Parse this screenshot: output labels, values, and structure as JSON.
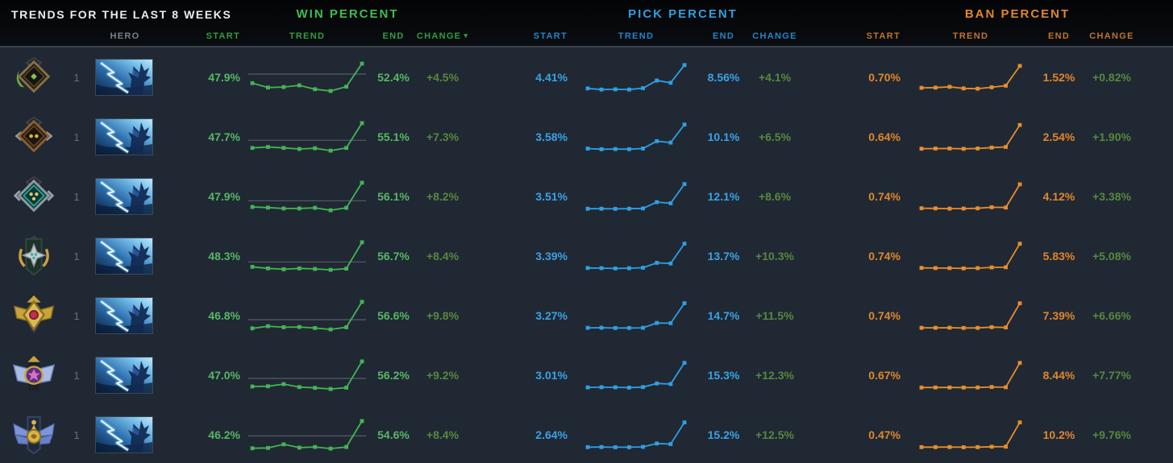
{
  "title": "TRENDS FOR THE LAST 8 WEEKS",
  "columns": {
    "hero": "HERO",
    "start": "START",
    "trend": "TREND",
    "end": "END",
    "change": "CHANGE"
  },
  "groups": {
    "win": {
      "label": "WIN PERCENT"
    },
    "pick": {
      "label": "PICK PERCENT"
    },
    "ban": {
      "label": "BAN PERCENT"
    }
  },
  "sort_indicator": {
    "column": "win-change",
    "glyph": "▾"
  },
  "hero_icon": "razor-portrait",
  "colors": {
    "win_value": "#57b763",
    "win_header": "#2f9e41",
    "win_title": "#3dbf4e",
    "pick_value": "#3aa2e4",
    "pick_header": "#2285c9",
    "pick_title": "#2f9fe2",
    "ban_value": "#e0862b",
    "ban_header": "#c1742a",
    "ban_title": "#e0862b",
    "change_positive": "#57883f",
    "win_spark": "#44b454",
    "pick_spark": "#2f9fe2",
    "ban_spark": "#e88d2b",
    "spark_ref": "#565d66",
    "body_bg": "#202834",
    "header_bg": "#07090c"
  },
  "rows": [
    {
      "rank": "herald",
      "count": "1",
      "win": {
        "start": "47.9%",
        "end": "52.4%",
        "change": "+4.5%",
        "ref": 50,
        "spark": [
          47.9,
          46.9,
          47.0,
          47.4,
          46.5,
          46.1,
          47.1,
          52.4
        ]
      },
      "pick": {
        "start": "4.41%",
        "end": "8.56%",
        "change": "+4.1%",
        "spark": [
          4.41,
          4.2,
          4.25,
          4.2,
          4.45,
          5.8,
          5.4,
          8.56
        ]
      },
      "ban": {
        "start": "0.70%",
        "end": "1.52%",
        "change": "+0.82%",
        "spark": [
          0.7,
          0.71,
          0.74,
          0.68,
          0.67,
          0.72,
          0.78,
          1.52
        ]
      }
    },
    {
      "rank": "guardian",
      "count": "1",
      "win": {
        "start": "47.7%",
        "end": "55.1%",
        "change": "+7.3%",
        "ref": 50,
        "spark": [
          47.7,
          48.0,
          47.7,
          47.4,
          47.6,
          46.9,
          47.7,
          55.1
        ]
      },
      "pick": {
        "start": "3.58%",
        "end": "10.1%",
        "change": "+6.5%",
        "spark": [
          3.58,
          3.4,
          3.45,
          3.4,
          3.6,
          5.6,
          5.2,
          10.1
        ]
      },
      "ban": {
        "start": "0.64%",
        "end": "2.54%",
        "change": "+1.90%",
        "spark": [
          0.64,
          0.65,
          0.66,
          0.63,
          0.66,
          0.73,
          0.78,
          2.54
        ]
      }
    },
    {
      "rank": "crusader",
      "count": "1",
      "win": {
        "start": "47.9%",
        "end": "56.1%",
        "change": "+8.2%",
        "ref": 50,
        "spark": [
          47.9,
          47.7,
          47.4,
          47.4,
          47.6,
          46.8,
          47.6,
          56.1
        ]
      },
      "pick": {
        "start": "3.51%",
        "end": "12.1%",
        "change": "+8.6%",
        "spark": [
          3.51,
          3.5,
          3.45,
          3.5,
          3.6,
          5.8,
          5.4,
          12.1
        ]
      },
      "ban": {
        "start": "0.74%",
        "end": "4.12%",
        "change": "+3.38%",
        "spark": [
          0.74,
          0.72,
          0.68,
          0.7,
          0.73,
          0.88,
          0.84,
          4.12
        ]
      }
    },
    {
      "rank": "archon",
      "count": "1",
      "win": {
        "start": "48.3%",
        "end": "56.7%",
        "change": "+8.4%",
        "ref": 50,
        "spark": [
          48.3,
          47.8,
          47.5,
          47.8,
          47.6,
          47.3,
          47.7,
          56.7
        ]
      },
      "pick": {
        "start": "3.39%",
        "end": "13.7%",
        "change": "+10.3%",
        "spark": [
          3.39,
          3.35,
          3.2,
          3.3,
          3.5,
          5.6,
          5.3,
          13.7
        ]
      },
      "ban": {
        "start": "0.74%",
        "end": "5.83%",
        "change": "+5.08%",
        "spark": [
          0.74,
          0.72,
          0.7,
          0.65,
          0.7,
          0.84,
          0.88,
          5.83
        ]
      }
    },
    {
      "rank": "legend",
      "count": "1",
      "win": {
        "start": "46.8%",
        "end": "56.6%",
        "change": "+9.8%",
        "ref": 50,
        "spark": [
          46.8,
          47.6,
          47.2,
          47.3,
          46.9,
          46.4,
          47.2,
          56.6
        ]
      },
      "pick": {
        "start": "3.27%",
        "end": "14.7%",
        "change": "+11.5%",
        "spark": [
          3.27,
          3.3,
          3.15,
          3.2,
          3.25,
          5.5,
          5.4,
          14.7
        ]
      },
      "ban": {
        "start": "0.74%",
        "end": "7.39%",
        "change": "+6.66%",
        "spark": [
          0.74,
          0.73,
          0.76,
          0.69,
          0.72,
          0.92,
          0.84,
          7.39
        ]
      }
    },
    {
      "rank": "ancient",
      "count": "1",
      "win": {
        "start": "47.0%",
        "end": "56.2%",
        "change": "+9.2%",
        "ref": 50,
        "spark": [
          47.0,
          47.1,
          47.9,
          46.8,
          46.5,
          46.1,
          46.6,
          56.2
        ]
      },
      "pick": {
        "start": "3.01%",
        "end": "15.3%",
        "change": "+12.3%",
        "spark": [
          3.01,
          3.1,
          3.05,
          2.9,
          3.2,
          5.0,
          4.7,
          15.3
        ]
      },
      "ban": {
        "start": "0.67%",
        "end": "8.44%",
        "change": "+7.77%",
        "spark": [
          0.67,
          0.7,
          0.68,
          0.65,
          0.7,
          0.84,
          0.76,
          8.44
        ]
      }
    },
    {
      "rank": "divine",
      "count": "1",
      "win": {
        "start": "46.2%",
        "end": "54.6%",
        "change": "+8.4%",
        "ref": 50,
        "spark": [
          46.2,
          46.3,
          47.4,
          46.4,
          46.6,
          46.1,
          46.6,
          54.6
        ]
      },
      "pick": {
        "start": "2.64%",
        "end": "15.2%",
        "change": "+12.5%",
        "spark": [
          2.64,
          2.7,
          2.6,
          2.6,
          2.75,
          4.5,
          4.2,
          15.2
        ]
      },
      "ban": {
        "start": "0.47%",
        "end": "10.2%",
        "change": "+9.76%",
        "spark": [
          0.47,
          0.48,
          0.5,
          0.45,
          0.48,
          0.62,
          0.68,
          10.2
        ]
      }
    }
  ]
}
